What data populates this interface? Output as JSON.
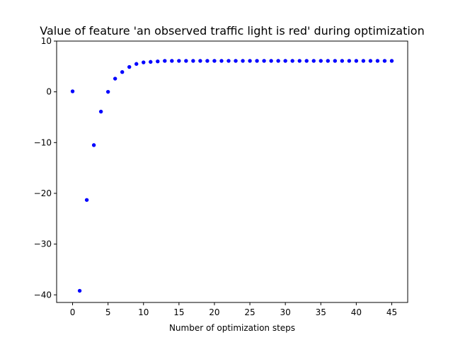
{
  "chart_data": {
    "type": "scatter",
    "title": "Value of feature 'an observed traffic light is red' during optimization",
    "xlabel": "Number of optimization steps",
    "ylabel": "",
    "xlim": [
      -2.25,
      47.25
    ],
    "ylim": [
      -41.5,
      10
    ],
    "xticks": [
      0,
      5,
      10,
      15,
      20,
      25,
      30,
      35,
      40,
      45
    ],
    "yticks": [
      10,
      0,
      -10,
      -20,
      -30,
      -40
    ],
    "ytick_labels": [
      "10",
      "0",
      "−10",
      "−20",
      "−30",
      "−40"
    ],
    "grid": false,
    "marker_color": "#0000ff",
    "series": [
      {
        "x": [
          0,
          1,
          2,
          3,
          4,
          5,
          6,
          7,
          8,
          9,
          10,
          11,
          12,
          13,
          14,
          15,
          16,
          17,
          18,
          19,
          20,
          21,
          22,
          23,
          24,
          25,
          26,
          27,
          28,
          29,
          30,
          31,
          32,
          33,
          34,
          35,
          36,
          37,
          38,
          39,
          40,
          41,
          42,
          43,
          44,
          45
        ],
        "y": [
          0.1,
          -39.2,
          -21.3,
          -10.5,
          -3.9,
          0.0,
          2.6,
          3.9,
          4.9,
          5.5,
          5.8,
          5.9,
          6.0,
          6.1,
          6.1,
          6.1,
          6.1,
          6.1,
          6.1,
          6.1,
          6.1,
          6.1,
          6.1,
          6.1,
          6.1,
          6.1,
          6.1,
          6.1,
          6.1,
          6.1,
          6.1,
          6.1,
          6.1,
          6.1,
          6.1,
          6.1,
          6.1,
          6.1,
          6.1,
          6.1,
          6.1,
          6.1,
          6.1,
          6.1,
          6.1,
          6.1
        ]
      }
    ]
  }
}
